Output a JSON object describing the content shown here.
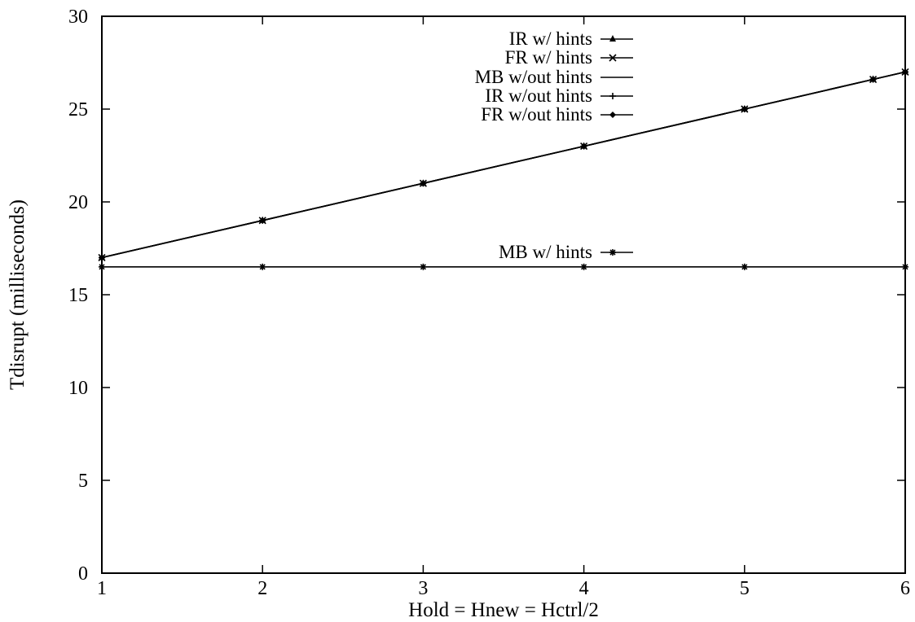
{
  "chart_data": {
    "type": "line",
    "title": "",
    "xlabel": "Hold = Hnew = Hctrl/2",
    "ylabel": "Tdisrupt (milliseconds)",
    "xlim": [
      1,
      6
    ],
    "ylim": [
      0,
      30
    ],
    "xticks": [
      "1",
      "2",
      "3",
      "4",
      "5",
      "6"
    ],
    "yticks": [
      "0",
      "5",
      "10",
      "15",
      "20",
      "25",
      "30"
    ],
    "grid": false,
    "legend_position": "top-center",
    "series": [
      {
        "name": "IR w/ hints",
        "marker": "triangle",
        "x": [
          1,
          2,
          3,
          4,
          5,
          5.8,
          6
        ],
        "y": [
          17,
          19,
          21,
          23,
          25,
          26.6,
          27
        ]
      },
      {
        "name": "FR w/ hints",
        "marker": "cross",
        "x": [
          1,
          2,
          3,
          4,
          5,
          5.8,
          6
        ],
        "y": [
          17,
          19,
          21,
          23,
          25,
          26.6,
          27
        ]
      },
      {
        "name": "MB w/out hints",
        "marker": "none",
        "x": [
          1,
          2,
          3,
          4,
          5,
          5.8,
          6
        ],
        "y": [
          17,
          19,
          21,
          23,
          25,
          26.6,
          27
        ]
      },
      {
        "name": "IR w/out hints",
        "marker": "plus",
        "x": [
          1,
          2,
          3,
          4,
          5,
          5.8,
          6
        ],
        "y": [
          17,
          19,
          21,
          23,
          25,
          26.6,
          27
        ]
      },
      {
        "name": "FR w/out hints",
        "marker": "diamond",
        "x": [
          1,
          2,
          3,
          4,
          5,
          5.8,
          6
        ],
        "y": [
          17,
          19,
          21,
          23,
          25,
          26.6,
          27
        ]
      },
      {
        "name": "MB w/ hints",
        "marker": "star",
        "x": [
          1,
          2,
          3,
          4,
          5,
          6
        ],
        "y": [
          16.5,
          16.5,
          16.5,
          16.5,
          16.5,
          16.5
        ]
      }
    ]
  }
}
